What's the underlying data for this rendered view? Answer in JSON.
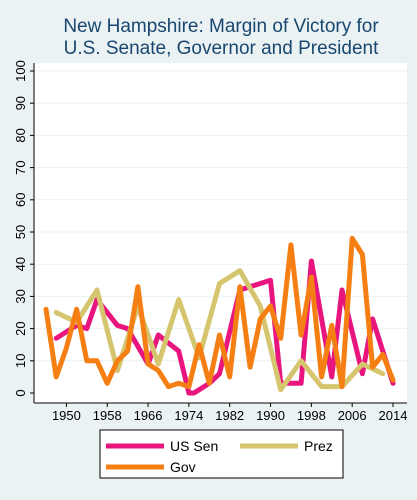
{
  "chart_data": {
    "type": "line",
    "title": [
      "New Hampshire: Margin of Victory for",
      "U.S. Senate, Governor and President"
    ],
    "xlabel": "",
    "ylabel": "",
    "xlim": [
      1946,
      2014
    ],
    "ylim": [
      0,
      100
    ],
    "x_ticks": [
      1950,
      1958,
      1966,
      1974,
      1982,
      1990,
      1998,
      2006,
      2014
    ],
    "y_ticks": [
      0,
      10,
      20,
      30,
      40,
      50,
      60,
      70,
      80,
      90,
      100
    ],
    "grid": true,
    "legend_position": "bottom",
    "series": [
      {
        "name": "US Sen",
        "color": "#E8157F",
        "points": [
          [
            1948,
            17
          ],
          [
            1950,
            19
          ],
          [
            1952,
            21
          ],
          [
            1954,
            20
          ],
          [
            1956,
            29
          ],
          [
            1960,
            21
          ],
          [
            1962,
            20
          ],
          [
            1966,
            9
          ],
          [
            1968,
            18
          ],
          [
            1972,
            13
          ],
          [
            1974,
            0
          ],
          [
            1975,
            0
          ],
          [
            1978,
            3
          ],
          [
            1980,
            6
          ],
          [
            1984,
            32
          ],
          [
            1986,
            33
          ],
          [
            1990,
            35
          ],
          [
            1992,
            3
          ],
          [
            1996,
            3
          ],
          [
            1998,
            41
          ],
          [
            2002,
            5
          ],
          [
            2004,
            32
          ],
          [
            2008,
            6
          ],
          [
            2010,
            23
          ],
          [
            2014,
            3
          ]
        ]
      },
      {
        "name": "Prez",
        "color": "#D6C56F",
        "points": [
          [
            1948,
            25
          ],
          [
            1952,
            22
          ],
          [
            1956,
            32
          ],
          [
            1960,
            7
          ],
          [
            1964,
            27
          ],
          [
            1968,
            9
          ],
          [
            1972,
            29
          ],
          [
            1976,
            11
          ],
          [
            1980,
            34
          ],
          [
            1984,
            38
          ],
          [
            1988,
            27
          ],
          [
            1992,
            1
          ],
          [
            1996,
            10
          ],
          [
            2000,
            2
          ],
          [
            2004,
            2
          ],
          [
            2008,
            9
          ],
          [
            2012,
            6
          ]
        ]
      },
      {
        "name": "Gov",
        "color": "#F67F13",
        "points": [
          [
            1946,
            26
          ],
          [
            1948,
            5
          ],
          [
            1950,
            14
          ],
          [
            1952,
            26
          ],
          [
            1954,
            10
          ],
          [
            1956,
            10
          ],
          [
            1958,
            3
          ],
          [
            1960,
            10
          ],
          [
            1962,
            13
          ],
          [
            1964,
            33
          ],
          [
            1966,
            9
          ],
          [
            1968,
            7
          ],
          [
            1970,
            2
          ],
          [
            1972,
            3
          ],
          [
            1974,
            2
          ],
          [
            1976,
            15
          ],
          [
            1978,
            3
          ],
          [
            1980,
            18
          ],
          [
            1982,
            5
          ],
          [
            1984,
            33
          ],
          [
            1986,
            8
          ],
          [
            1988,
            23
          ],
          [
            1990,
            27
          ],
          [
            1992,
            17
          ],
          [
            1994,
            46
          ],
          [
            1996,
            18
          ],
          [
            1998,
            36
          ],
          [
            2000,
            5
          ],
          [
            2002,
            21
          ],
          [
            2004,
            2
          ],
          [
            2006,
            48
          ],
          [
            2008,
            43
          ],
          [
            2010,
            8
          ],
          [
            2012,
            12
          ],
          [
            2014,
            4
          ]
        ]
      }
    ]
  }
}
